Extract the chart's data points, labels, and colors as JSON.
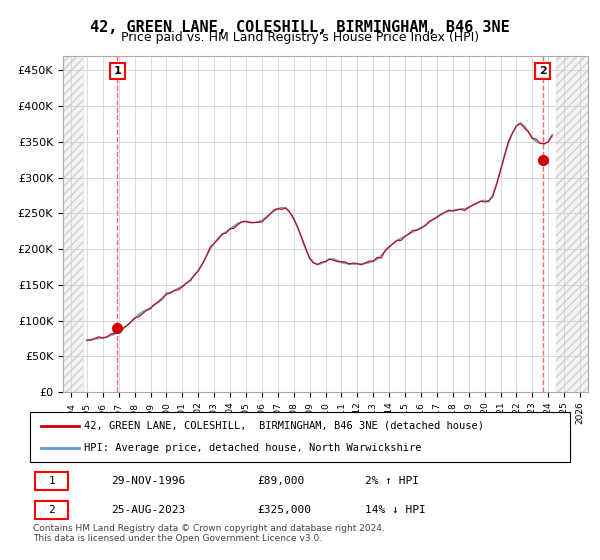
{
  "title": "42, GREEN LANE, COLESHILL, BIRMINGHAM, B46 3NE",
  "subtitle": "Price paid vs. HM Land Registry's House Price Index (HPI)",
  "title_fontsize": 11,
  "subtitle_fontsize": 9,
  "ylabel_ticks": [
    "£0",
    "£50K",
    "£100K",
    "£150K",
    "£200K",
    "£250K",
    "£300K",
    "£350K",
    "£400K",
    "£450K"
  ],
  "ytick_values": [
    0,
    50000,
    100000,
    150000,
    200000,
    250000,
    300000,
    350000,
    400000,
    450000
  ],
  "ylim": [
    0,
    470000
  ],
  "xlim_start": 1993.5,
  "xlim_end": 2026.5,
  "hpi_color": "#6699cc",
  "price_color": "#cc0000",
  "marker_color": "#cc0000",
  "dashed_line_color": "#ff6666",
  "sale1_x": 1996.92,
  "sale1_y": 89000,
  "sale1_label": "1",
  "sale2_x": 2023.65,
  "sale2_y": 325000,
  "sale2_label": "2",
  "legend_line1": "42, GREEN LANE, COLESHILL,  BIRMINGHAM, B46 3NE (detached house)",
  "legend_line2": "HPI: Average price, detached house, North Warwickshire",
  "table_row1": [
    "1",
    "29-NOV-1996",
    "£89,000",
    "2% ↑ HPI"
  ],
  "table_row2": [
    "2",
    "25-AUG-2023",
    "£325,000",
    "14% ↓ HPI"
  ],
  "footer": "Contains HM Land Registry data © Crown copyright and database right 2024.\nThis data is licensed under the Open Government Licence v3.0.",
  "hpi_data_x": [
    1995.0,
    1995.25,
    1995.5,
    1995.75,
    1996.0,
    1996.25,
    1996.5,
    1996.75,
    1997.0,
    1997.25,
    1997.5,
    1997.75,
    1998.0,
    1998.25,
    1998.5,
    1998.75,
    1999.0,
    1999.25,
    1999.5,
    1999.75,
    2000.0,
    2000.25,
    2000.5,
    2000.75,
    2001.0,
    2001.25,
    2001.5,
    2001.75,
    2002.0,
    2002.25,
    2002.5,
    2002.75,
    2003.0,
    2003.25,
    2003.5,
    2003.75,
    2004.0,
    2004.25,
    2004.5,
    2004.75,
    2005.0,
    2005.25,
    2005.5,
    2005.75,
    2006.0,
    2006.25,
    2006.5,
    2006.75,
    2007.0,
    2007.25,
    2007.5,
    2007.75,
    2008.0,
    2008.25,
    2008.5,
    2008.75,
    2009.0,
    2009.25,
    2009.5,
    2009.75,
    2010.0,
    2010.25,
    2010.5,
    2010.75,
    2011.0,
    2011.25,
    2011.5,
    2011.75,
    2012.0,
    2012.25,
    2012.5,
    2012.75,
    2013.0,
    2013.25,
    2013.5,
    2013.75,
    2014.0,
    2014.25,
    2014.5,
    2014.75,
    2015.0,
    2015.25,
    2015.5,
    2015.75,
    2016.0,
    2016.25,
    2016.5,
    2016.75,
    2017.0,
    2017.25,
    2017.5,
    2017.75,
    2018.0,
    2018.25,
    2018.5,
    2018.75,
    2019.0,
    2019.25,
    2019.5,
    2019.75,
    2020.0,
    2020.25,
    2020.5,
    2020.75,
    2021.0,
    2021.25,
    2021.5,
    2021.75,
    2022.0,
    2022.25,
    2022.5,
    2022.75,
    2023.0,
    2023.25,
    2023.5,
    2023.75,
    2024.0,
    2024.25
  ],
  "hpi_data_y": [
    72000,
    73000,
    74000,
    75000,
    76000,
    77000,
    79000,
    81000,
    84000,
    88000,
    93000,
    98000,
    103000,
    108000,
    112000,
    115000,
    118000,
    122000,
    127000,
    132000,
    136000,
    139000,
    142000,
    145000,
    148000,
    152000,
    157000,
    163000,
    170000,
    179000,
    190000,
    200000,
    208000,
    215000,
    220000,
    224000,
    228000,
    232000,
    236000,
    238000,
    238000,
    237000,
    237000,
    238000,
    240000,
    244000,
    249000,
    253000,
    256000,
    258000,
    257000,
    252000,
    243000,
    230000,
    215000,
    200000,
    188000,
    181000,
    178000,
    180000,
    183000,
    186000,
    186000,
    184000,
    181000,
    180000,
    179000,
    179000,
    179000,
    179000,
    180000,
    181000,
    183000,
    186000,
    191000,
    197000,
    203000,
    208000,
    212000,
    215000,
    218000,
    221000,
    224000,
    227000,
    230000,
    233000,
    237000,
    241000,
    245000,
    248000,
    251000,
    253000,
    254000,
    255000,
    256000,
    256000,
    258000,
    261000,
    264000,
    267000,
    268000,
    267000,
    274000,
    291000,
    310000,
    330000,
    348000,
    362000,
    372000,
    376000,
    372000,
    364000,
    355000,
    350000,
    348000,
    347000,
    350000,
    360000
  ],
  "background_hatch_color": "#e8e8e8",
  "grid_color": "#cccccc"
}
